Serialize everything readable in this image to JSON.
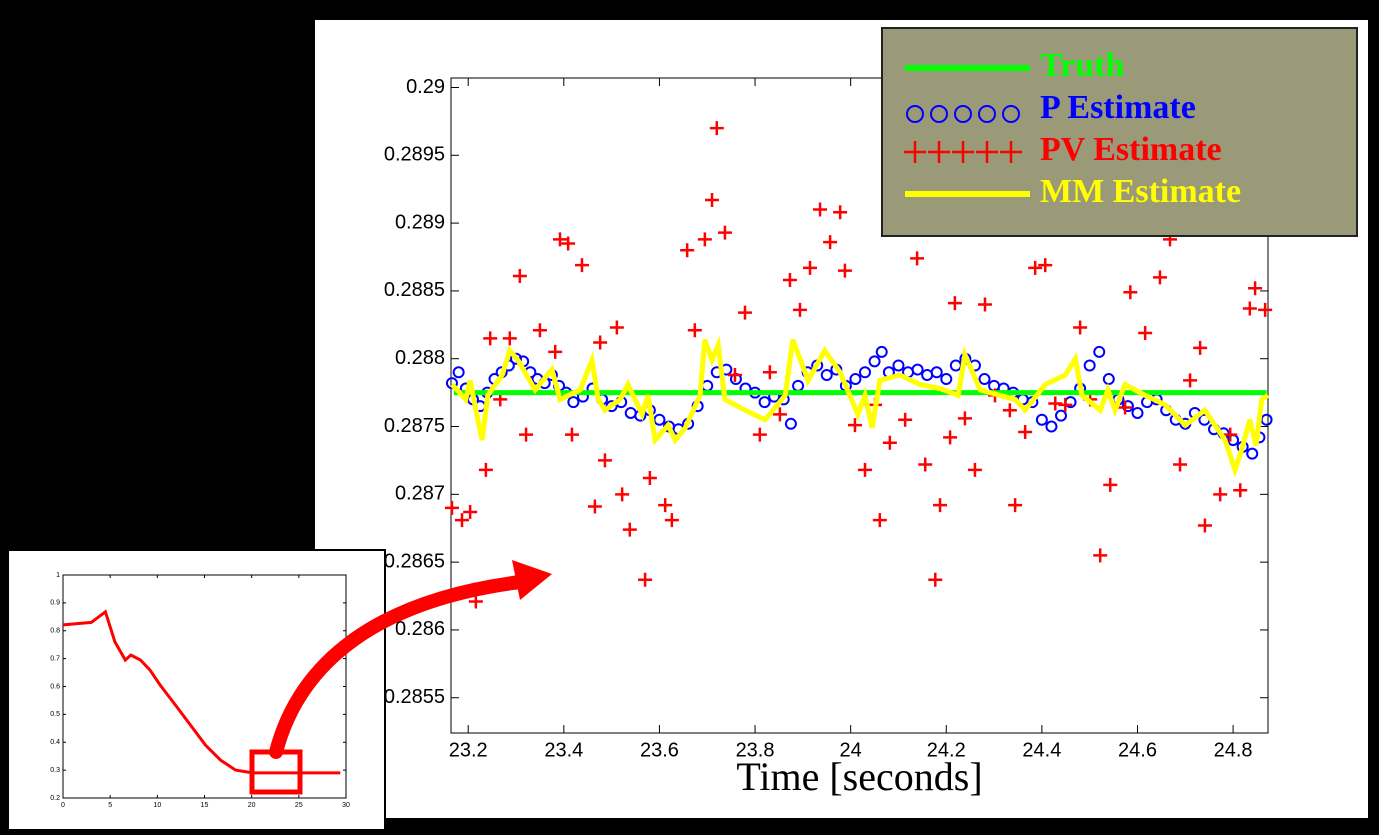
{
  "chart_data": [
    {
      "type": "line",
      "xlabel": "Time [seconds]",
      "legend": "upper right",
      "xlim": [
        23.164,
        24.873
      ],
      "ylim": [
        0.28524,
        0.29007
      ],
      "xticks": [
        23.2,
        23.4,
        23.6,
        23.8,
        24,
        24.2,
        24.4,
        24.6,
        24.8
      ],
      "yticks": [
        0.2855,
        0.286,
        0.2865,
        0.287,
        0.2875,
        0.288,
        0.2885,
        0.289,
        0.2895,
        0.29
      ],
      "series": [
        {
          "name": "Truth",
          "color": "#00ff00",
          "mark": "line",
          "x": [
            23.17,
            24.87
          ],
          "values": [
            0.28775,
            0.28775
          ]
        },
        {
          "name": "P Estimate",
          "color": "#0000ff",
          "mark": "circle",
          "x": [
            23.166,
            23.18,
            23.195,
            23.21,
            23.225,
            23.24,
            23.255,
            23.27,
            23.285,
            23.3,
            23.315,
            23.33,
            23.345,
            23.36,
            23.375,
            23.39,
            23.405,
            23.42,
            23.44,
            23.46,
            23.48,
            23.5,
            23.52,
            23.54,
            23.56,
            23.58,
            23.6,
            23.62,
            23.64,
            23.66,
            23.68,
            23.7,
            23.72,
            23.74,
            23.76,
            23.78,
            23.8,
            23.82,
            23.84,
            23.86,
            23.875,
            23.89,
            23.91,
            23.93,
            23.95,
            23.97,
            23.99,
            24.01,
            24.03,
            24.05,
            24.065,
            24.08,
            24.1,
            24.12,
            24.14,
            24.16,
            24.18,
            24.2,
            24.22,
            24.24,
            24.26,
            24.28,
            24.3,
            24.32,
            24.34,
            24.36,
            24.38,
            24.4,
            24.42,
            24.44,
            24.46,
            24.48,
            24.5,
            24.52,
            24.54,
            24.56,
            24.58,
            24.6,
            24.62,
            24.64,
            24.66,
            24.68,
            24.7,
            24.72,
            24.74,
            24.76,
            24.78,
            24.8,
            24.82,
            24.84,
            24.855,
            24.87
          ],
          "values": [
            0.28782,
            0.2879,
            0.28778,
            0.2877,
            0.28765,
            0.28775,
            0.28785,
            0.2879,
            0.28795,
            0.288,
            0.28798,
            0.2879,
            0.28785,
            0.28782,
            0.28788,
            0.2878,
            0.28775,
            0.28768,
            0.28772,
            0.28778,
            0.2877,
            0.28765,
            0.28768,
            0.2876,
            0.28758,
            0.28762,
            0.28755,
            0.2875,
            0.28748,
            0.28752,
            0.28765,
            0.2878,
            0.2879,
            0.28792,
            0.28785,
            0.28778,
            0.28775,
            0.28768,
            0.28772,
            0.2877,
            0.28752,
            0.2878,
            0.2879,
            0.28795,
            0.28788,
            0.28792,
            0.2878,
            0.28785,
            0.2879,
            0.28798,
            0.28805,
            0.2879,
            0.28795,
            0.2879,
            0.28792,
            0.28788,
            0.2879,
            0.28785,
            0.28795,
            0.288,
            0.28795,
            0.28785,
            0.2878,
            0.28778,
            0.28775,
            0.2877,
            0.28768,
            0.28755,
            0.2875,
            0.28758,
            0.28768,
            0.28778,
            0.28795,
            0.28805,
            0.28785,
            0.2877,
            0.28765,
            0.2876,
            0.28768,
            0.2877,
            0.28762,
            0.28755,
            0.28752,
            0.2876,
            0.28755,
            0.28748,
            0.28745,
            0.2874,
            0.28735,
            0.2873,
            0.28742,
            0.28755
          ]
        },
        {
          "name": "PV Estimate",
          "color": "#ff0000",
          "mark": "plus",
          "x": [
            23.166,
            23.187,
            23.204,
            23.216,
            23.237,
            23.246,
            23.267,
            23.287,
            23.308,
            23.321,
            23.35,
            23.382,
            23.392,
            23.409,
            23.417,
            23.438,
            23.465,
            23.476,
            23.486,
            23.511,
            23.522,
            23.538,
            23.57,
            23.58,
            23.612,
            23.626,
            23.658,
            23.674,
            23.695,
            23.71,
            23.72,
            23.737,
            23.758,
            23.779,
            23.81,
            23.831,
            23.852,
            23.873,
            23.894,
            23.915,
            23.936,
            23.957,
            23.978,
            23.988,
            24.009,
            24.03,
            24.051,
            24.061,
            24.082,
            24.114,
            24.139,
            24.156,
            24.177,
            24.187,
            24.208,
            24.218,
            24.239,
            24.26,
            24.281,
            24.302,
            24.333,
            24.344,
            24.365,
            24.386,
            24.407,
            24.428,
            24.449,
            24.48,
            24.501,
            24.522,
            24.543,
            24.574,
            24.585,
            24.616,
            24.647,
            24.668,
            24.689,
            24.71,
            24.731,
            24.741,
            24.773,
            24.794,
            24.815,
            24.835,
            24.846,
            24.867
          ],
          "values": [
            0.2869,
            0.28681,
            0.28687,
            0.28621,
            0.28718,
            0.28815,
            0.2877,
            0.28815,
            0.28861,
            0.28744,
            0.28821,
            0.28805,
            0.28888,
            0.28885,
            0.28744,
            0.28869,
            0.28691,
            0.28812,
            0.28725,
            0.28823,
            0.287,
            0.28674,
            0.28637,
            0.28712,
            0.28692,
            0.28681,
            0.2888,
            0.28821,
            0.28888,
            0.28917,
            0.2897,
            0.28893,
            0.28788,
            0.28834,
            0.28744,
            0.2879,
            0.28759,
            0.28858,
            0.28836,
            0.28867,
            0.2891,
            0.28886,
            0.28908,
            0.28865,
            0.28751,
            0.28718,
            0.28766,
            0.28681,
            0.28738,
            0.28755,
            0.28874,
            0.28722,
            0.28637,
            0.28692,
            0.28742,
            0.28841,
            0.28756,
            0.28718,
            0.2884,
            0.28773,
            0.28762,
            0.28692,
            0.28746,
            0.28867,
            0.28869,
            0.28767,
            0.28766,
            0.28823,
            0.2877,
            0.28655,
            0.28707,
            0.28764,
            0.28849,
            0.28819,
            0.2886,
            0.28888,
            0.28722,
            0.28784,
            0.28808,
            0.28677,
            0.287,
            0.28744,
            0.28703,
            0.28837,
            0.28852,
            0.28836
          ]
        },
        {
          "name": "MM Estimate",
          "color": "#ffff00",
          "mark": "line",
          "x": [
            23.166,
            23.195,
            23.204,
            23.22,
            23.229,
            23.241,
            23.271,
            23.287,
            23.304,
            23.34,
            23.375,
            23.392,
            23.434,
            23.459,
            23.472,
            23.486,
            23.518,
            23.534,
            23.564,
            23.576,
            23.591,
            23.618,
            23.633,
            23.654,
            23.685,
            23.695,
            23.71,
            23.723,
            23.737,
            23.779,
            23.821,
            23.863,
            23.879,
            23.911,
            23.946,
            23.978,
            24.015,
            24.03,
            24.045,
            24.061,
            24.103,
            24.145,
            24.187,
            24.225,
            24.239,
            24.271,
            24.312,
            24.344,
            24.365,
            24.407,
            24.449,
            24.47,
            24.484,
            24.522,
            24.538,
            24.553,
            24.574,
            24.616,
            24.658,
            24.7,
            24.741,
            24.783,
            24.804,
            24.818,
            24.835,
            24.848,
            24.86,
            24.873
          ],
          "values": [
            0.28781,
            0.2877,
            0.28784,
            0.28755,
            0.2874,
            0.28773,
            0.28788,
            0.28806,
            0.28799,
            0.28777,
            0.28792,
            0.2877,
            0.28777,
            0.28799,
            0.2877,
            0.28762,
            0.2877,
            0.28781,
            0.28759,
            0.28773,
            0.2874,
            0.28751,
            0.2874,
            0.28749,
            0.28773,
            0.28814,
            0.28799,
            0.2881,
            0.2877,
            0.28762,
            0.28755,
            0.28773,
            0.28814,
            0.28784,
            0.28806,
            0.2879,
            0.28759,
            0.28773,
            0.28749,
            0.28784,
            0.28788,
            0.28781,
            0.28778,
            0.28773,
            0.28803,
            0.28777,
            0.28773,
            0.2877,
            0.28762,
            0.28781,
            0.28788,
            0.288,
            0.28773,
            0.28762,
            0.28777,
            0.28762,
            0.28781,
            0.28773,
            0.28766,
            0.28751,
            0.28762,
            0.2874,
            0.28718,
            0.28733,
            0.28755,
            0.28736,
            0.2877,
            0.28773
          ]
        }
      ]
    },
    {
      "type": "line",
      "xlim": [
        0,
        30
      ],
      "ylim": [
        0.2,
        1
      ],
      "xticks": [
        0,
        5,
        10,
        15,
        20,
        25,
        30
      ],
      "yticks": [
        0.2,
        0.3,
        0.4,
        0.5,
        0.6,
        0.7,
        0.8,
        0.9,
        1
      ],
      "series": [
        {
          "color": "#ff0000",
          "x": [
            0,
            3,
            4.5,
            5.5,
            6.6,
            7.2,
            8.2,
            9.2,
            10.3,
            11.9,
            13.5,
            15.1,
            16.7,
            18.3,
            20.1,
            29.4
          ],
          "values": [
            0.821,
            0.83,
            0.868,
            0.76,
            0.695,
            0.713,
            0.695,
            0.66,
            0.605,
            0.534,
            0.462,
            0.39,
            0.336,
            0.3,
            0.29,
            0.29
          ]
        }
      ]
    }
  ]
}
